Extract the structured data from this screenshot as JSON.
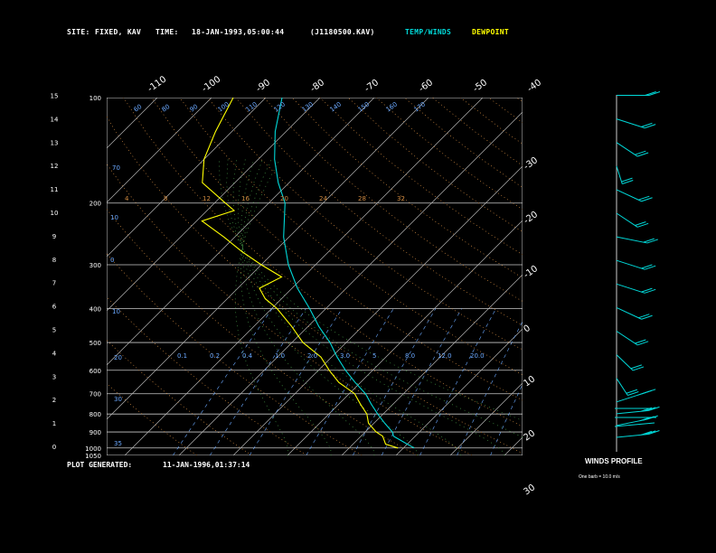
{
  "header": {
    "site_label": "SITE:",
    "site_value": "FIXED, KAV",
    "time_label": "TIME:",
    "time_value": "18-JAN-1993,05:00:44",
    "file_id": "(J1180500.KAV)",
    "temp_winds_label": "TEMP/WINDS",
    "dewpoint_label": "DEWPOINT"
  },
  "footer": {
    "generated_label": "PLOT GENERATED:",
    "generated_value": "11-JAN-1996,01:37:14"
  },
  "winds_panel": {
    "title": "WINDS PROFILE",
    "note": "One barb = 10.0 m/s"
  },
  "colors": {
    "temperature": "#00d8d8",
    "dewpoint": "#ffff00",
    "isobar": "#c8c8c8",
    "isotherm": "#b4b4b4",
    "dry_adiabat": "#d08a40",
    "mixing_ratio": "#6aa8ff",
    "moist_adiabat": "#50b050",
    "barb": "#00d8d8"
  },
  "chart_data": {
    "type": "line",
    "title": "",
    "pressure_levels": [
      100,
      200,
      300,
      400,
      500,
      600,
      700,
      800,
      900,
      1000,
      1050
    ],
    "pressure_tick_labels": [
      "100",
      "200",
      "300",
      "400",
      "500",
      "600",
      "700",
      "800",
      "900",
      "1000",
      "1050"
    ],
    "height_km_labels": [
      "0",
      "1",
      "2",
      "3",
      "4",
      "5",
      "6",
      "7",
      "8",
      "9",
      "10",
      "11",
      "12",
      "13",
      "14",
      "15"
    ],
    "isotherm_labels_top": [
      "-110",
      "-100",
      "-90",
      "-80",
      "-70",
      "-60",
      "-50",
      "-40"
    ],
    "isotherm_labels_right": [
      "-30",
      "-20",
      "-10",
      "0",
      "10",
      "20",
      "30"
    ],
    "dry_adiabat_labels": [
      "60",
      "80",
      "90",
      "100",
      "110",
      "120",
      "130",
      "140",
      "150",
      "160",
      "170"
    ],
    "mixing_ratio_labels": [
      "0.1",
      "0.2",
      "0.4",
      "1.0",
      "2.0",
      "3.0",
      "5",
      "8.0",
      "12.0",
      "20.0"
    ],
    "saturated_labels": [
      "4",
      "8",
      "12",
      "16",
      "20",
      "24",
      "28",
      "32"
    ],
    "series": [
      {
        "name": "TEMP/WINDS",
        "p": [
          1000,
          975,
          950,
          925,
          900,
          850,
          800,
          750,
          700,
          650,
          600,
          550,
          500,
          450,
          400,
          350,
          300,
          250,
          200,
          175,
          150,
          125,
          100
        ],
        "t": [
          2,
          0,
          -2,
          -4,
          -5,
          -8,
          -11,
          -14,
          -17,
          -21,
          -25,
          -29,
          -33,
          -38,
          -43,
          -49,
          -55,
          -61,
          -67,
          -72,
          -77,
          -82,
          -87
        ]
      },
      {
        "name": "DEWPOINT",
        "p": [
          1000,
          975,
          950,
          925,
          900,
          850,
          800,
          750,
          700,
          650,
          600,
          550,
          500,
          450,
          400,
          375,
          350,
          325,
          300,
          275,
          250,
          225,
          210,
          200,
          175,
          150,
          125,
          100
        ],
        "t": [
          -1,
          -4,
          -5,
          -6,
          -8,
          -11,
          -13,
          -16,
          -19,
          -24,
          -28,
          -32,
          -38,
          -43,
          -49,
          -53,
          -56,
          -54,
          -60,
          -66,
          -72,
          -79,
          -75,
          -78,
          -86,
          -90,
          -93,
          -96
        ]
      }
    ],
    "winds": [
      {
        "h_km": 0.5,
        "dir": 260,
        "spd": 30
      },
      {
        "h_km": 1.0,
        "dir": 250,
        "spd": 30
      },
      {
        "h_km": 1.5,
        "dir": 260,
        "spd": 30
      },
      {
        "h_km": 2.0,
        "dir": 240,
        "spd": 30
      },
      {
        "h_km": 3.0,
        "dir": 340,
        "spd": 20
      },
      {
        "h_km": 4.0,
        "dir": 330,
        "spd": 20
      },
      {
        "h_km": 5.0,
        "dir": 320,
        "spd": 20
      },
      {
        "h_km": 6.0,
        "dir": 310,
        "spd": 20
      },
      {
        "h_km": 7.0,
        "dir": 300,
        "spd": 20
      },
      {
        "h_km": 8.0,
        "dir": 300,
        "spd": 20
      },
      {
        "h_km": 9.0,
        "dir": 290,
        "spd": 20
      },
      {
        "h_km": 10.0,
        "dir": 320,
        "spd": 20
      },
      {
        "h_km": 11.0,
        "dir": 310,
        "spd": 20
      },
      {
        "h_km": 12.0,
        "dir": 350,
        "spd": 20
      },
      {
        "h_km": 13.0,
        "dir": 320,
        "spd": 20
      },
      {
        "h_km": 14.0,
        "dir": 300,
        "spd": 20
      },
      {
        "h_km": 15.0,
        "dir": 270,
        "spd": 20
      }
    ]
  }
}
